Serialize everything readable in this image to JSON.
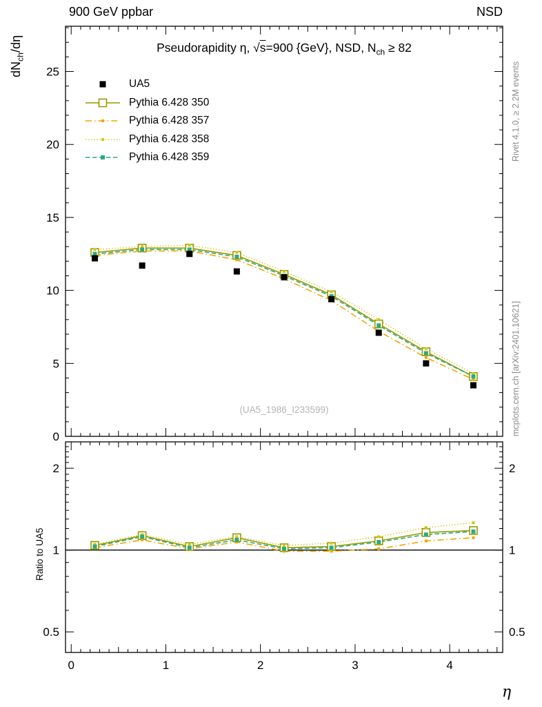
{
  "header": {
    "left": "900 GeV ppbar",
    "right": "NSD"
  },
  "title": {
    "p1": "Pseudorapidity η, ",
    "sqrt": "√",
    "sqrt_arg": "s",
    "p2": "=900 {GeV}, NSD, N",
    "sub": "ch",
    "p3": " ≥ 82"
  },
  "axes": {
    "ylabel_main": {
      "p1": "dN",
      "sub": "ch",
      "p2": "/dη"
    },
    "ylabel_ratio": "Ratio to UA5",
    "xlabel": "η"
  },
  "side": {
    "top": "Rivet 4.1.0, ≥ 2.2M events",
    "bottom": "mcplots.cern.ch [arXiv:2401.10621]"
  },
  "watermark": "(UA5_1986_I233599)",
  "chart_data": {
    "type": "line",
    "title": "Pseudorapidity η, √s=900 {GeV}, NSD, N_ch ≥ 82",
    "xlabel": "η",
    "x": [
      0.25,
      0.75,
      1.25,
      1.75,
      2.25,
      2.75,
      3.25,
      3.75,
      4.25
    ],
    "main": {
      "ylabel": "dN_ch/dη",
      "xlim": [
        -0.06,
        4.56
      ],
      "ylim": [
        0,
        28.1
      ],
      "xticks": [
        0,
        1,
        2,
        3,
        4
      ],
      "yticks": [
        0,
        5,
        10,
        15,
        20,
        25
      ],
      "grid": false,
      "legend_position": "top-left",
      "series": [
        {
          "key": "ua5",
          "name": "UA5",
          "color": "#000000",
          "marker": "square-filled",
          "marker_size": 9,
          "line": "none",
          "values": [
            12.2,
            11.7,
            12.5,
            11.3,
            10.9,
            9.4,
            7.1,
            5.0,
            3.5
          ]
        },
        {
          "key": "p350",
          "name": "Pythia 6.428 350",
          "color": "#999900",
          "marker": "square-open",
          "marker_size": 11,
          "line": "solid",
          "values": [
            12.6,
            12.9,
            12.9,
            12.4,
            11.1,
            9.7,
            7.7,
            5.8,
            4.1
          ]
        },
        {
          "key": "p357",
          "name": "Pythia 6.428 357",
          "color": "#f0a500",
          "marker": "square-filled",
          "marker_size": 4,
          "line": "dashdot",
          "values": [
            12.4,
            12.7,
            12.7,
            12.1,
            10.8,
            9.3,
            7.2,
            5.4,
            3.9
          ]
        },
        {
          "key": "p358",
          "name": "Pythia 6.428 358",
          "color": "#d4c613",
          "marker": "square-filled",
          "marker_size": 4,
          "line": "dotted",
          "values": [
            12.8,
            13.0,
            13.1,
            12.6,
            11.3,
            9.9,
            8.0,
            6.0,
            4.3
          ]
        },
        {
          "key": "p359",
          "name": "Pythia 6.428 359",
          "color": "#2aab7f",
          "marker": "square-filled",
          "marker_size": 6,
          "line": "dashed",
          "values": [
            12.5,
            12.8,
            12.8,
            12.3,
            11.0,
            9.6,
            7.6,
            5.7,
            4.1
          ]
        }
      ]
    },
    "ratio": {
      "ylabel": "Ratio to UA5",
      "yscale": "log",
      "ylim": [
        0.42,
        2.5
      ],
      "yticks": [
        0.5,
        1,
        2
      ],
      "reference": 1,
      "series": [
        {
          "key": "p350",
          "values": [
            1.04,
            1.13,
            1.03,
            1.11,
            1.02,
            1.03,
            1.08,
            1.16,
            1.18
          ]
        },
        {
          "key": "p357",
          "values": [
            1.02,
            1.09,
            1.01,
            1.07,
            0.99,
            0.99,
            1.01,
            1.08,
            1.11
          ]
        },
        {
          "key": "p358",
          "values": [
            1.05,
            1.14,
            1.05,
            1.12,
            1.04,
            1.06,
            1.12,
            1.21,
            1.26
          ]
        },
        {
          "key": "p359",
          "values": [
            1.03,
            1.12,
            1.02,
            1.09,
            1.01,
            1.02,
            1.07,
            1.14,
            1.17
          ]
        }
      ]
    }
  }
}
